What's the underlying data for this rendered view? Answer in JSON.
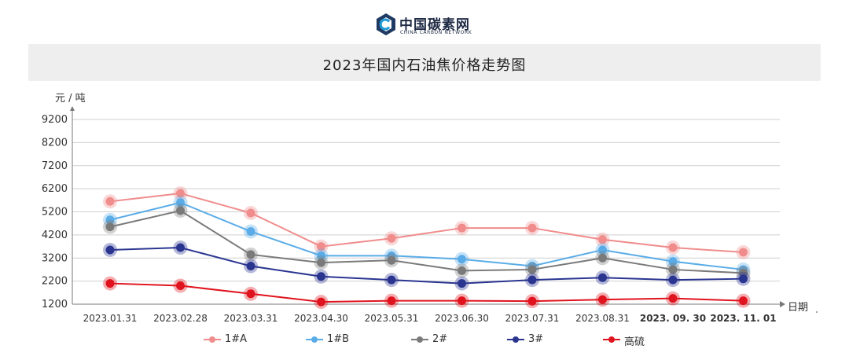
{
  "logo": {
    "name_cn": "中国碳素网",
    "name_en": "CHINA CARBON NETWORK"
  },
  "title": "2023年国内石油焦价格走势图",
  "chart_data": {
    "type": "line",
    "title": "2023年国内石油焦价格走势图",
    "ylabel": "元 / 吨",
    "xlabel": "日期",
    "ylim": [
      1200,
      9200
    ],
    "yticks": [
      1200,
      2200,
      3200,
      4200,
      5200,
      6200,
      7200,
      8200,
      9200
    ],
    "grid": true,
    "legend_position": "bottom",
    "categories": [
      "2023.01.31",
      "2023.02.28",
      "2023.03.31",
      "2023.04.30",
      "2023.05.31",
      "2023.06.30",
      "2023.07.31",
      "2023.08.31",
      "2023. 09. 30",
      "2023. 11. 01"
    ],
    "series": [
      {
        "name": "1#A",
        "color": "#f08c8c",
        "values": [
          5650,
          6000,
          5150,
          3700,
          4050,
          4500,
          4500,
          4000,
          3650,
          3450
        ]
      },
      {
        "name": "1#B",
        "color": "#5aace8",
        "values": [
          4850,
          5600,
          4350,
          3300,
          3300,
          3150,
          2850,
          3550,
          3050,
          2700
        ]
      },
      {
        "name": "2#",
        "color": "#7a7a7a",
        "values": [
          4550,
          5250,
          3350,
          3000,
          3100,
          2650,
          2700,
          3200,
          2700,
          2550
        ]
      },
      {
        "name": "3#",
        "color": "#2a3590",
        "values": [
          3550,
          3650,
          2850,
          2400,
          2250,
          2100,
          2250,
          2350,
          2250,
          2300
        ]
      },
      {
        "name": "高硫",
        "color": "#e0141e",
        "values": [
          2100,
          2000,
          1650,
          1300,
          1350,
          1350,
          1330,
          1400,
          1450,
          1350
        ]
      }
    ]
  }
}
